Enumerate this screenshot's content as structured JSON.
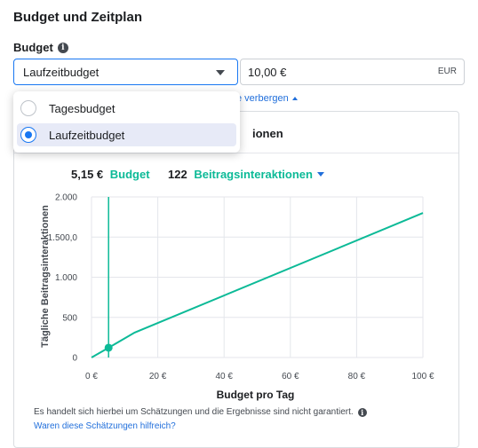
{
  "section": {
    "title": "Budget und Zeitplan"
  },
  "budget": {
    "label": "Budget",
    "selected": "Laufzeitbudget",
    "amount": "10,00 €",
    "currency": "EUR",
    "options": [
      {
        "label": "Tagesbudget",
        "selected": false
      },
      {
        "label": "Laufzeitbudget",
        "selected": true
      }
    ]
  },
  "hide_link": "e verbergen",
  "estimate": {
    "header_title": "ionen",
    "budget_value": "5,15 €",
    "budget_label": "Budget",
    "metric_value": "122",
    "metric_label": "Beitragsinteraktionen",
    "disclaimer": "Es handelt sich hierbei um Schätzungen und die Ergebnisse sind nicht garantiert.",
    "feedback_link": "Waren diese Schätzungen hilfreich?"
  },
  "colors": {
    "accent": "#0cba97",
    "primary": "#1877f2",
    "link": "#216fdb"
  },
  "chart_data": {
    "type": "line",
    "xlabel": "Budget pro Tag",
    "ylabel": "Tägliche Beitragsinteraktionen",
    "x_ticks": [
      "0 €",
      "20 €",
      "40 €",
      "60 €",
      "80 €",
      "100 €"
    ],
    "y_ticks": [
      "0",
      "500",
      "1.000",
      "1.500,0",
      "2.000"
    ],
    "xlim": [
      0,
      100
    ],
    "ylim": [
      0,
      2000
    ],
    "grid": true,
    "series": [
      {
        "x": [
          0,
          5.15,
          13,
          100
        ],
        "y": [
          0,
          122,
          310,
          1800
        ]
      }
    ],
    "marker": {
      "x": 5.15,
      "y": 122
    },
    "vline_x": 5.15
  }
}
